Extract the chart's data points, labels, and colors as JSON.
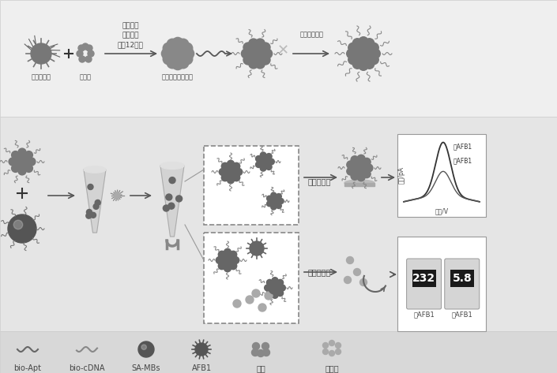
{
  "fig_w": 7.05,
  "fig_h": 4.73,
  "dpi": 100,
  "bg_top": "#efefef",
  "bg_mid": "#e5e5e5",
  "bg_leg": "#d8d8d8",
  "dark": "#444444",
  "mid": "#777777",
  "light": "#aaaaaa",
  "white": "#ffffff",
  "top_labels": {
    "streptavidin": "链霨亲和素",
    "copper_sulfate": "硫酸鑄",
    "condition_line1": "在磷酸盐",
    "condition_line2": "缓冲液中",
    "condition_line3": "室温12小时",
    "nanoflower": "磷酸鑄杂化纳米花",
    "biotinylase": "生物素转化酶"
  },
  "bottom_labels": {
    "electrochemical": "电化学检测",
    "glucometer": "血糖仪检测",
    "with_afb1": "有AFB1",
    "without_afb1": "无AFB1",
    "voltage": "电位/V",
    "current": "电流/pA"
  },
  "legend_labels": [
    "bio-Apt",
    "bio-cDNA",
    "SA-MBs",
    "AFB1",
    "蔗糖",
    "葡萄糖"
  ],
  "display_232": "232",
  "display_58": "5.8"
}
